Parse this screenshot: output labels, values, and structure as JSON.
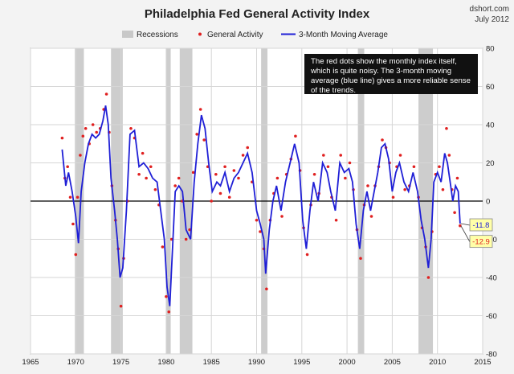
{
  "chart_data": {
    "type": "line",
    "title": "Philadelphia Fed General Activity Index",
    "source_line1": "dshort.com",
    "source_line2": "July 2012",
    "xlim": [
      1965,
      2015
    ],
    "ylim": [
      -80,
      80
    ],
    "x_ticks": [
      "1965",
      "1970",
      "1975",
      "1980",
      "1985",
      "1990",
      "1995",
      "2000",
      "2005",
      "2010",
      "2015"
    ],
    "y_ticks": [
      "80",
      "60",
      "40",
      "20",
      "0",
      "-20",
      "-40",
      "-60",
      "-80"
    ],
    "grid": true,
    "legend": {
      "position": "top",
      "items": [
        {
          "label": "Recessions",
          "symbol": "band"
        },
        {
          "label": "General Activity",
          "symbol": "dot"
        },
        {
          "label": "3-Month Moving Average",
          "symbol": "line"
        }
      ]
    },
    "recessions": [
      [
        1969.9,
        1970.9
      ],
      [
        1973.9,
        1975.2
      ],
      [
        1980.0,
        1980.5
      ],
      [
        1981.5,
        1982.9
      ],
      [
        1990.5,
        1991.2
      ],
      [
        2001.2,
        2001.9
      ],
      [
        2007.9,
        2009.5
      ]
    ],
    "series": [
      {
        "name": "3-Month Moving Average",
        "color": "#1f1fd6",
        "x": [
          1968.5,
          1968.9,
          1969.2,
          1969.6,
          1970.0,
          1970.3,
          1970.6,
          1971.0,
          1971.4,
          1971.8,
          1972.2,
          1972.6,
          1973.0,
          1973.3,
          1973.6,
          1973.9,
          1974.3,
          1974.6,
          1974.9,
          1975.2,
          1975.6,
          1976.0,
          1976.5,
          1977.0,
          1977.5,
          1978.0,
          1978.5,
          1979.0,
          1979.4,
          1979.8,
          1980.1,
          1980.4,
          1980.7,
          1981.0,
          1981.4,
          1981.8,
          1982.2,
          1982.7,
          1983.1,
          1983.5,
          1983.9,
          1984.3,
          1984.7,
          1985.1,
          1985.6,
          1986.0,
          1986.5,
          1987.0,
          1987.5,
          1988.0,
          1988.5,
          1989.0,
          1989.5,
          1990.0,
          1990.4,
          1990.8,
          1991.0,
          1991.4,
          1991.8,
          1992.2,
          1992.7,
          1993.2,
          1993.7,
          1994.2,
          1994.7,
          1995.1,
          1995.5,
          1995.9,
          1996.3,
          1996.8,
          1997.3,
          1997.8,
          1998.2,
          1998.7,
          1999.2,
          1999.7,
          2000.2,
          2000.6,
          2001.0,
          2001.4,
          2001.8,
          2002.2,
          2002.6,
          2003.0,
          2003.4,
          2003.8,
          2004.2,
          2004.6,
          2005.0,
          2005.4,
          2005.8,
          2006.3,
          2006.8,
          2007.3,
          2007.8,
          2008.2,
          2008.6,
          2009.0,
          2009.3,
          2009.6,
          2010.0,
          2010.4,
          2010.8,
          2011.1,
          2011.4,
          2011.7,
          2012.0,
          2012.3,
          2012.5
        ],
        "y": [
          27,
          8,
          15,
          5,
          -8,
          -22,
          5,
          20,
          30,
          35,
          33,
          35,
          42,
          50,
          40,
          12,
          -5,
          -20,
          -40,
          -35,
          -5,
          35,
          37,
          18,
          20,
          17,
          12,
          10,
          -5,
          -20,
          -45,
          -55,
          -25,
          5,
          8,
          5,
          -15,
          -20,
          10,
          30,
          45,
          38,
          20,
          5,
          10,
          8,
          15,
          5,
          12,
          15,
          20,
          25,
          15,
          -5,
          -12,
          -20,
          -38,
          -15,
          0,
          8,
          -5,
          10,
          20,
          30,
          20,
          -10,
          -25,
          -5,
          10,
          0,
          20,
          15,
          5,
          -5,
          20,
          15,
          17,
          10,
          -12,
          -25,
          -5,
          5,
          -5,
          5,
          15,
          28,
          30,
          22,
          5,
          15,
          20,
          10,
          5,
          15,
          5,
          -10,
          -20,
          -35,
          -20,
          10,
          15,
          10,
          25,
          20,
          10,
          0,
          8,
          5,
          -11.8
        ]
      },
      {
        "name": "General Activity",
        "color": "#e02020",
        "x": [
          1968.5,
          1968.8,
          1969.1,
          1969.4,
          1969.7,
          1970.0,
          1970.2,
          1970.5,
          1970.8,
          1971.1,
          1971.5,
          1971.9,
          1972.3,
          1972.7,
          1973.1,
          1973.4,
          1973.7,
          1974.0,
          1974.4,
          1974.7,
          1975.0,
          1975.3,
          1975.7,
          1976.1,
          1976.5,
          1977.0,
          1977.4,
          1977.8,
          1978.3,
          1978.8,
          1979.2,
          1979.6,
          1980.0,
          1980.3,
          1980.6,
          1981.0,
          1981.4,
          1981.8,
          1982.2,
          1982.6,
          1983.0,
          1983.4,
          1983.8,
          1984.2,
          1984.6,
          1985.0,
          1985.5,
          1986.0,
          1986.5,
          1987.0,
          1987.5,
          1988.0,
          1988.5,
          1989.0,
          1989.5,
          1990.0,
          1990.4,
          1990.8,
          1991.1,
          1991.5,
          1991.9,
          1992.3,
          1992.8,
          1993.3,
          1993.8,
          1994.3,
          1994.8,
          1995.2,
          1995.6,
          1996.0,
          1996.4,
          1996.9,
          1997.4,
          1997.9,
          1998.3,
          1998.8,
          1999.3,
          1999.8,
          2000.3,
          2000.7,
          2001.1,
          2001.5,
          2001.9,
          2002.3,
          2002.7,
          2003.1,
          2003.5,
          2003.9,
          2004.3,
          2004.7,
          2005.1,
          2005.5,
          2005.9,
          2006.4,
          2006.9,
          2007.4,
          2007.9,
          2008.3,
          2008.7,
          2009.0,
          2009.4,
          2009.8,
          2010.2,
          2010.6,
          2011.0,
          2011.3,
          2011.6,
          2011.9,
          2012.2,
          2012.5
        ],
        "y": [
          33,
          12,
          18,
          2,
          -12,
          -28,
          2,
          24,
          34,
          38,
          30,
          40,
          36,
          38,
          48,
          56,
          36,
          8,
          -10,
          -25,
          -55,
          -30,
          0,
          38,
          33,
          14,
          25,
          12,
          18,
          6,
          -2,
          -24,
          -50,
          -58,
          -20,
          8,
          12,
          0,
          -20,
          -15,
          15,
          35,
          48,
          32,
          18,
          0,
          14,
          4,
          18,
          2,
          16,
          12,
          24,
          28,
          10,
          -10,
          -16,
          -25,
          -46,
          -10,
          4,
          12,
          -8,
          14,
          22,
          34,
          16,
          -14,
          -28,
          -2,
          14,
          4,
          24,
          18,
          2,
          -10,
          24,
          12,
          20,
          6,
          -15,
          -30,
          -2,
          8,
          -8,
          8,
          18,
          32,
          28,
          20,
          2,
          18,
          24,
          6,
          8,
          18,
          2,
          -14,
          -24,
          -40,
          -16,
          14,
          18,
          6,
          38,
          24,
          6,
          -6,
          12,
          -12.9
        ]
      }
    ],
    "annotation": "The red dots show the monthly  index itself, which is quite noisy. The 3-month moving average (blue line) gives a more reliable sense of the trends.",
    "callouts": [
      {
        "label": "-11.8",
        "value": -11.8,
        "color": "#1f1fd6"
      },
      {
        "label": "-12.9",
        "value": -12.9,
        "color": "#e02020"
      }
    ]
  }
}
